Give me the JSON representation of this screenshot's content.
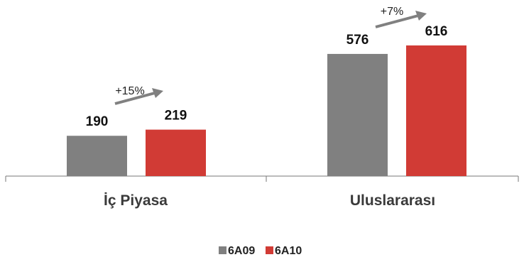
{
  "chart_data": {
    "type": "bar",
    "categories": [
      "İç Piyasa",
      "Uluslararası"
    ],
    "series": [
      {
        "name": "6A09",
        "values": [
          190,
          576
        ],
        "color": "#808080"
      },
      {
        "name": "6A10",
        "values": [
          219,
          616
        ],
        "color": "#d13b35"
      }
    ],
    "value_labels": [
      [
        "190",
        "576"
      ],
      [
        "219",
        "616"
      ]
    ],
    "growth_annotations": [
      "+15%",
      "+7%"
    ],
    "title": "",
    "xlabel": "",
    "ylabel": "",
    "ylim": [
      0,
      700
    ],
    "grid": false,
    "legend_position": "bottom-center"
  }
}
